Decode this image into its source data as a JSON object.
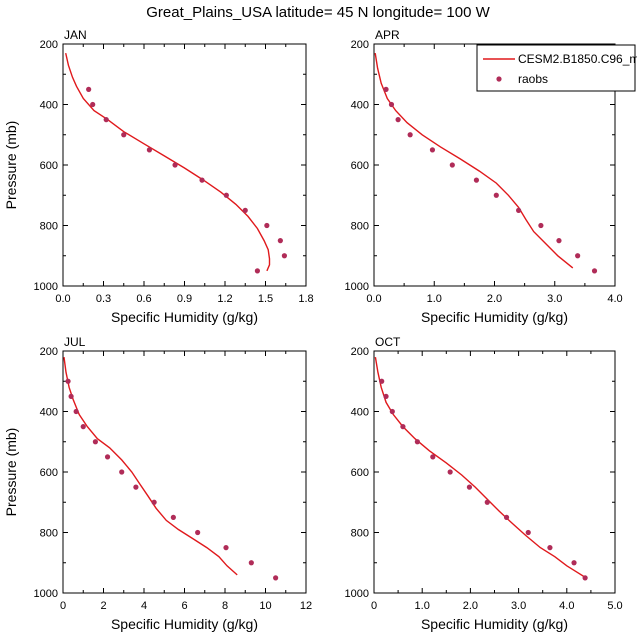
{
  "figure": {
    "title": "Great_Plains_USA  latitude= 45 N longitude= 100 W"
  },
  "legend": {
    "model_label": "CESM2.B1850.C96_m",
    "obs_label": "raobs"
  },
  "colors": {
    "model_line": "#e0191c",
    "obs_marker": "#b02c58"
  },
  "chart_data": [
    {
      "type": "scatter",
      "title": "JAN",
      "xlabel": "Specific Humidity (g/kg)",
      "ylabel": "Pressure (mb)",
      "xlim": [
        0,
        1.8
      ],
      "ylim": [
        1000,
        200
      ],
      "xticks": [
        "0.0",
        "0.3",
        "0.6",
        "0.9",
        "1.2",
        "1.5",
        "1.8"
      ],
      "xtick_values": [
        0,
        0.3,
        0.6,
        0.9,
        1.2,
        1.5,
        1.8
      ],
      "yticks": [
        "200",
        "400",
        "600",
        "800",
        "1000"
      ],
      "ytick_values": [
        200,
        400,
        600,
        800,
        1000
      ],
      "series": [
        {
          "name": "CESM2.B1850.C96_m",
          "kind": "line",
          "x": [
            0.02,
            0.04,
            0.07,
            0.1,
            0.15,
            0.23,
            0.33,
            0.45,
            0.6,
            0.75,
            0.9,
            1.04,
            1.17,
            1.28,
            1.37,
            1.44,
            1.49,
            1.52,
            1.53,
            1.53,
            1.51
          ],
          "y": [
            230,
            270,
            310,
            340,
            380,
            420,
            450,
            490,
            530,
            570,
            610,
            650,
            690,
            730,
            770,
            810,
            850,
            880,
            910,
            930,
            950
          ]
        },
        {
          "name": "raobs",
          "kind": "points",
          "x": [
            0.19,
            0.22,
            0.32,
            0.45,
            0.64,
            0.83,
            1.03,
            1.21,
            1.35,
            1.51,
            1.61,
            1.64,
            1.44
          ],
          "y": [
            350,
            400,
            450,
            500,
            550,
            600,
            650,
            700,
            750,
            800,
            850,
            900,
            950
          ]
        }
      ]
    },
    {
      "type": "scatter",
      "title": "APR",
      "xlabel": "Specific Humidity (g/kg)",
      "ylabel": "",
      "xlim": [
        0,
        4.0
      ],
      "ylim": [
        1000,
        200
      ],
      "xticks": [
        "0.0",
        "1.0",
        "2.0",
        "3.0",
        "4.0"
      ],
      "xtick_values": [
        0,
        1,
        2,
        3,
        4
      ],
      "yticks": [
        "200",
        "400",
        "600",
        "800",
        "1000"
      ],
      "ytick_values": [
        200,
        400,
        600,
        800,
        1000
      ],
      "series": [
        {
          "name": "CESM2.B1850.C96_m",
          "kind": "line",
          "x": [
            0.02,
            0.06,
            0.12,
            0.22,
            0.36,
            0.55,
            0.8,
            1.1,
            1.43,
            1.75,
            2.03,
            2.23,
            2.4,
            2.52,
            2.65,
            2.85,
            3.05,
            3.3
          ],
          "y": [
            230,
            280,
            330,
            380,
            420,
            460,
            500,
            540,
            580,
            620,
            660,
            700,
            740,
            780,
            820,
            860,
            900,
            940
          ]
        },
        {
          "name": "raobs",
          "kind": "points",
          "x": [
            0.2,
            0.29,
            0.4,
            0.6,
            0.97,
            1.3,
            1.7,
            2.03,
            2.4,
            2.77,
            3.07,
            3.38,
            3.66
          ],
          "y": [
            350,
            400,
            450,
            500,
            550,
            600,
            650,
            700,
            750,
            800,
            850,
            900,
            950
          ]
        }
      ]
    },
    {
      "type": "scatter",
      "title": "JUL",
      "xlabel": "Specific Humidity (g/kg)",
      "ylabel": "Pressure (mb)",
      "xlim": [
        0,
        12
      ],
      "ylim": [
        1000,
        200
      ],
      "xticks": [
        "0",
        "2",
        "4",
        "6",
        "8",
        "10",
        "12"
      ],
      "xtick_values": [
        0,
        2,
        4,
        6,
        8,
        10,
        12
      ],
      "yticks": [
        "200",
        "400",
        "600",
        "800",
        "1000"
      ],
      "ytick_values": [
        200,
        400,
        600,
        800,
        1000
      ],
      "series": [
        {
          "name": "CESM2.B1850.C96_m",
          "kind": "line",
          "x": [
            0.05,
            0.15,
            0.3,
            0.5,
            0.8,
            1.2,
            1.7,
            2.3,
            2.9,
            3.4,
            3.8,
            4.2,
            4.6,
            5.1,
            5.7,
            6.4,
            7.1,
            7.7,
            8.1,
            8.6
          ],
          "y": [
            220,
            270,
            320,
            360,
            410,
            450,
            490,
            520,
            560,
            600,
            640,
            680,
            720,
            760,
            790,
            820,
            850,
            880,
            910,
            940
          ]
        },
        {
          "name": "raobs",
          "kind": "points",
          "x": [
            0.25,
            0.4,
            0.65,
            1.0,
            1.6,
            2.2,
            2.9,
            3.6,
            4.5,
            5.45,
            6.65,
            8.05,
            9.3,
            10.5
          ],
          "y": [
            300,
            350,
            400,
            450,
            500,
            550,
            600,
            650,
            700,
            750,
            800,
            850,
            900,
            950
          ]
        }
      ]
    },
    {
      "type": "scatter",
      "title": "OCT",
      "xlabel": "Specific Humidity (g/kg)",
      "ylabel": "",
      "xlim": [
        0,
        5.0
      ],
      "ylim": [
        1000,
        200
      ],
      "xticks": [
        "0",
        "1.0",
        "2.0",
        "3.0",
        "4.0",
        "5.0"
      ],
      "xtick_values": [
        0,
        1,
        2,
        3,
        4,
        5
      ],
      "yticks": [
        "200",
        "400",
        "600",
        "800",
        "1000"
      ],
      "ytick_values": [
        200,
        400,
        600,
        800,
        1000
      ],
      "series": [
        {
          "name": "CESM2.B1850.C96_m",
          "kind": "line",
          "x": [
            0.03,
            0.08,
            0.15,
            0.25,
            0.4,
            0.6,
            0.85,
            1.15,
            1.5,
            1.82,
            2.1,
            2.35,
            2.6,
            2.87,
            3.15,
            3.45,
            3.75,
            4.0,
            4.2,
            4.4
          ],
          "y": [
            220,
            270,
            320,
            370,
            410,
            450,
            490,
            530,
            570,
            610,
            650,
            690,
            730,
            770,
            810,
            850,
            880,
            910,
            930,
            950
          ]
        },
        {
          "name": "raobs",
          "kind": "points",
          "x": [
            0.16,
            0.25,
            0.38,
            0.6,
            0.9,
            1.22,
            1.58,
            1.98,
            2.35,
            2.75,
            3.2,
            3.65,
            4.15,
            4.38
          ],
          "y": [
            300,
            350,
            400,
            450,
            500,
            550,
            600,
            650,
            700,
            750,
            800,
            850,
            900,
            950
          ]
        }
      ]
    }
  ]
}
